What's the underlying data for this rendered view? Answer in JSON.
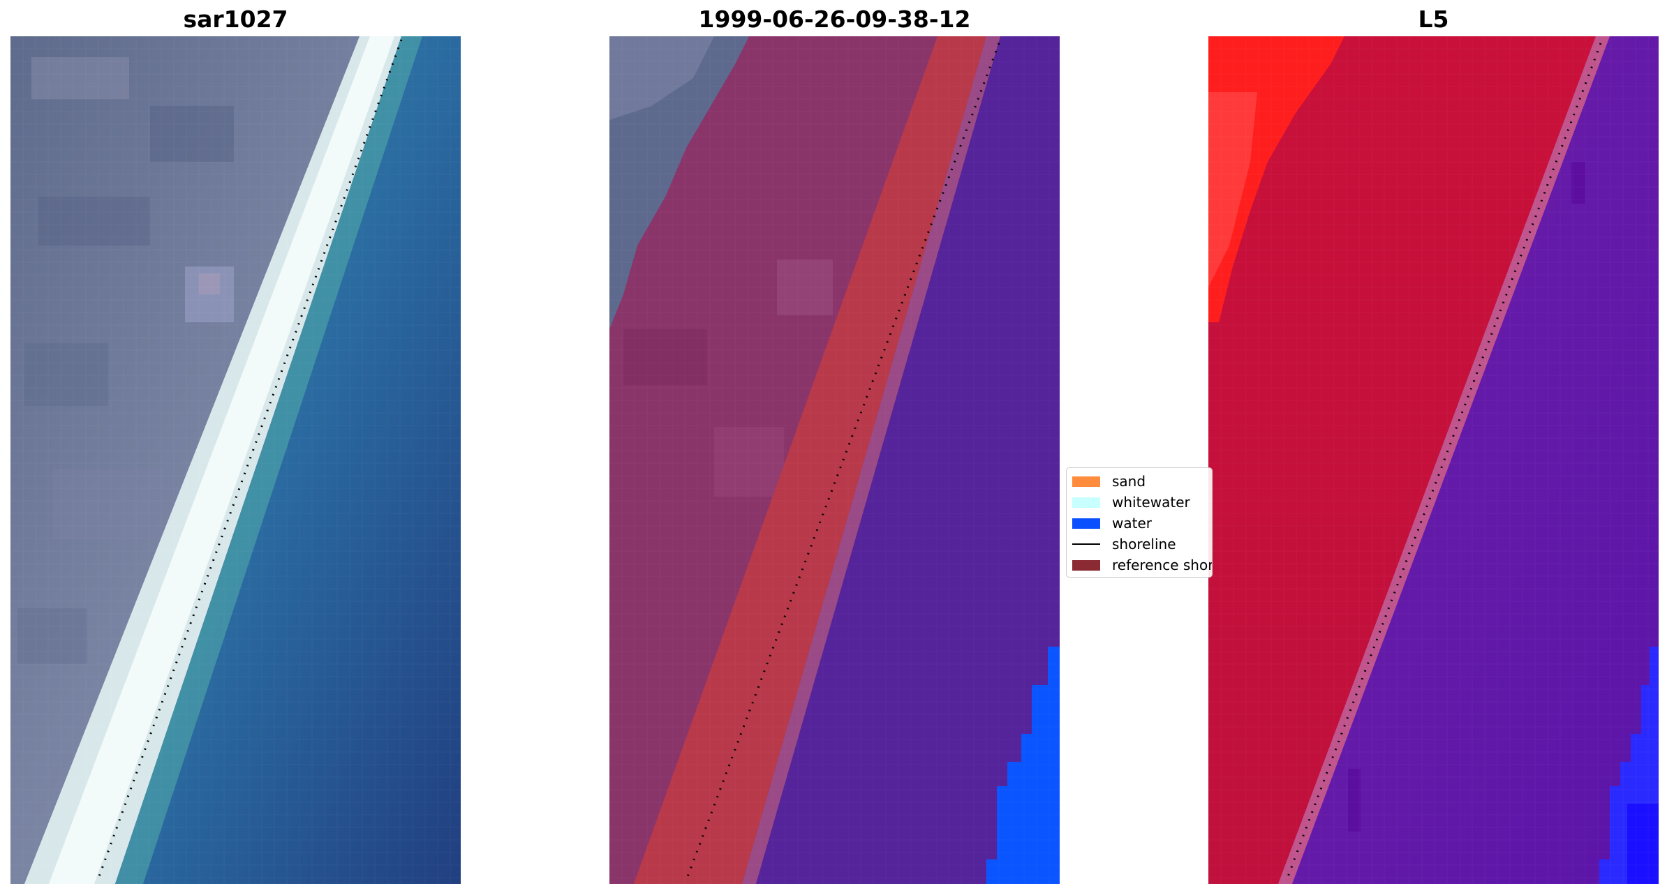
{
  "panels": [
    {
      "title": "sar1027"
    },
    {
      "title": "1999-06-26-09-38-12"
    },
    {
      "title": "L5"
    }
  ],
  "legend": {
    "items": [
      {
        "label": "sand",
        "color": "#ff8c3c"
      },
      {
        "label": "whitewater",
        "color": "#c8ffff"
      },
      {
        "label": "water",
        "color": "#0a50ff"
      },
      {
        "label": "shoreline",
        "color": "#000000"
      },
      {
        "label": "reference shoreline",
        "color": "#8b2a33"
      }
    ]
  },
  "colors": {
    "land_gray": "#6e7a99",
    "beach_white": "#e8f2f2",
    "sea_blue": "#2a6ca0",
    "class_land_purple": "#8e3a6e",
    "class_sand_red": "#b8394a",
    "class_water_violet": "#55239a",
    "class_water_blue": "#0a50ff",
    "index_red": "#c8103a",
    "index_bright_red": "#ff1a1a",
    "index_purple": "#6a18a6",
    "index_blue": "#1a1aff"
  }
}
